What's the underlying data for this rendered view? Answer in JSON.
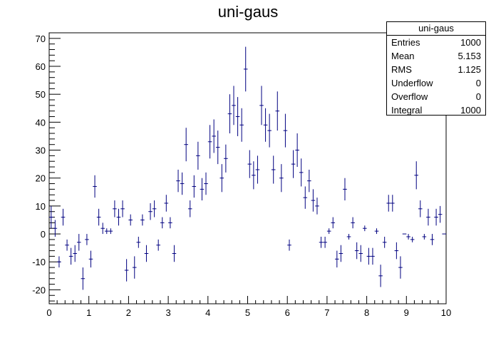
{
  "chart_data": {
    "type": "scatter",
    "title": "uni-gaus",
    "xlabel": "",
    "ylabel": "",
    "xlim": [
      0,
      10
    ],
    "ylim": [
      -25,
      72
    ],
    "x_ticks": [
      0,
      1,
      2,
      3,
      4,
      5,
      6,
      7,
      8,
      9,
      10
    ],
    "y_ticks": [
      -20,
      -10,
      0,
      10,
      20,
      30,
      40,
      50,
      60,
      70
    ],
    "bin_width": 0.1,
    "marker_color": "#000080",
    "grid": false,
    "legend": "none",
    "series": [
      {
        "x": [
          0.05,
          0.15,
          0.25,
          0.35,
          0.45,
          0.55,
          0.65,
          0.75,
          0.85,
          0.95,
          1.05,
          1.15,
          1.25,
          1.35,
          1.45,
          1.55,
          1.65,
          1.75,
          1.85,
          1.95,
          2.05,
          2.15,
          2.25,
          2.35,
          2.45,
          2.55,
          2.65,
          2.75,
          2.85,
          2.95,
          3.05,
          3.15,
          3.25,
          3.35,
          3.45,
          3.55,
          3.65,
          3.75,
          3.85,
          3.95,
          4.05,
          4.15,
          4.25,
          4.35,
          4.45,
          4.55,
          4.65,
          4.75,
          4.85,
          4.95,
          5.05,
          5.15,
          5.25,
          5.35,
          5.45,
          5.55,
          5.65,
          5.75,
          5.85,
          5.95,
          6.05,
          6.15,
          6.25,
          6.35,
          6.45,
          6.55,
          6.65,
          6.75,
          6.85,
          6.95,
          7.05,
          7.15,
          7.25,
          7.35,
          7.45,
          7.55,
          7.65,
          7.75,
          7.85,
          7.95,
          8.05,
          8.15,
          8.25,
          8.35,
          8.45,
          8.55,
          8.65,
          8.75,
          8.85,
          8.95,
          9.05,
          9.15,
          9.25,
          9.35,
          9.45,
          9.55,
          9.65,
          9.75,
          9.85,
          9.95
        ],
        "y": [
          6,
          2,
          -10,
          6,
          -4,
          -8,
          -7,
          -3,
          -16,
          -2,
          -9,
          17,
          6,
          2,
          1,
          1,
          9,
          6,
          9,
          -13,
          5,
          -12,
          -3,
          5,
          -7,
          8,
          9,
          -4,
          4,
          11,
          4,
          -7,
          19,
          18,
          32,
          9,
          17,
          28,
          16,
          18,
          33,
          35,
          31,
          20,
          27,
          43,
          46,
          42,
          39,
          59,
          25,
          21,
          23,
          46,
          39,
          37,
          23,
          44,
          20,
          37,
          -4,
          25,
          30,
          22,
          13,
          19,
          12,
          10,
          -3,
          -3,
          1,
          4,
          -9,
          -7,
          16,
          -1,
          4,
          -6,
          -7,
          2,
          -8,
          -8,
          1,
          -15,
          -3,
          11,
          11,
          -6,
          -12,
          0,
          -1,
          -2,
          21,
          9,
          -1,
          6,
          -2,
          6,
          7,
          0
        ],
        "y_err": [
          4,
          3,
          2,
          3,
          2,
          3,
          3,
          3,
          4,
          2,
          3,
          4,
          3,
          2,
          1,
          1,
          3,
          3,
          3,
          4,
          2,
          4,
          2,
          2,
          3,
          3,
          3,
          2,
          2,
          3,
          2,
          3,
          4,
          4,
          6,
          3,
          4,
          5,
          4,
          4,
          6,
          6,
          6,
          5,
          5,
          7,
          7,
          7,
          6,
          8,
          5,
          5,
          5,
          7,
          6,
          6,
          5,
          7,
          5,
          6,
          2,
          5,
          6,
          5,
          4,
          4,
          4,
          3,
          2,
          2,
          1,
          2,
          3,
          3,
          4,
          1,
          2,
          3,
          3,
          1,
          3,
          3,
          1,
          4,
          2,
          3,
          3,
          3,
          4,
          0,
          1,
          1,
          5,
          3,
          1,
          3,
          2,
          3,
          3,
          0
        ]
      }
    ]
  },
  "stats": {
    "title": "uni-gaus",
    "rows": [
      {
        "label": "Entries",
        "value": "1000"
      },
      {
        "label": "Mean",
        "value": "5.153"
      },
      {
        "label": "RMS",
        "value": "1.125"
      },
      {
        "label": "Underflow",
        "value": "0"
      },
      {
        "label": "Overflow",
        "value": "0"
      },
      {
        "label": "Integral",
        "value": "1000"
      }
    ]
  }
}
